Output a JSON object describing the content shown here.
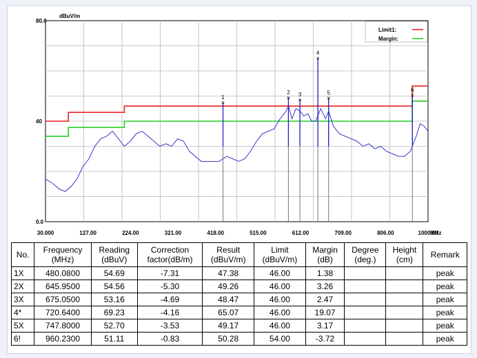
{
  "chart_data": {
    "type": "line",
    "ylabel": "dBuV/m",
    "x_unit": "MHz",
    "xlim": [
      30,
      1000
    ],
    "ylim": [
      0,
      80
    ],
    "x_ticks": [
      "30.000",
      "127.00",
      "224.00",
      "321.00",
      "418.00",
      "515.00",
      "612.00",
      "709.00",
      "806.00",
      "1000.00"
    ],
    "y_ticks": [
      {
        "value": 0,
        "label": "0.0"
      },
      {
        "value": 40,
        "label": "40"
      },
      {
        "value": 80,
        "label": "80.0"
      }
    ],
    "grid": true,
    "legend_position": "top-right",
    "series": [
      {
        "name": "Limit1:",
        "color": "#e82020",
        "x": [
          30,
          88,
          88,
          230,
          230,
          960,
          960,
          1000
        ],
        "y": [
          40,
          40,
          43.5,
          43.5,
          46,
          46,
          54,
          54
        ]
      },
      {
        "name": "Margin:",
        "color": "#20d020",
        "x": [
          30,
          88,
          88,
          230,
          230,
          960,
          960,
          1000
        ],
        "y": [
          34,
          34,
          37.5,
          37.5,
          40,
          40,
          48,
          48
        ]
      },
      {
        "name": "",
        "color": "#2020c8",
        "x": [
          30,
          50,
          65,
          80,
          95,
          110,
          125,
          140,
          155,
          170,
          185,
          200,
          215,
          230,
          245,
          260,
          275,
          290,
          305,
          320,
          335,
          350,
          365,
          380,
          395,
          410,
          425,
          440,
          455,
          470,
          480,
          490,
          505,
          520,
          535,
          550,
          565,
          580,
          595,
          610,
          625,
          640,
          646,
          655,
          665,
          675,
          685,
          695,
          705,
          715,
          720,
          728,
          740,
          748,
          760,
          775,
          790,
          805,
          820,
          835,
          850,
          865,
          880,
          895,
          910,
          925,
          940,
          955,
          960,
          970,
          980,
          990,
          1000
        ],
        "y": [
          17,
          15,
          13,
          12,
          14,
          17,
          22,
          25,
          30,
          33,
          34,
          36,
          33,
          30,
          32,
          35,
          36,
          34,
          32,
          30,
          31,
          30,
          33,
          32,
          28,
          26,
          24,
          24,
          24,
          24,
          25,
          26,
          25,
          24,
          25,
          28,
          32,
          35,
          36,
          37,
          41,
          44,
          46,
          41,
          45,
          44,
          42,
          43,
          40,
          40,
          42,
          45,
          41,
          44,
          38,
          35,
          34,
          33,
          32,
          30,
          31,
          29,
          30,
          28,
          27,
          26,
          26,
          28,
          30,
          34,
          39,
          38,
          36
        ]
      }
    ],
    "markers": [
      {
        "label": "1",
        "x": 480.08,
        "y": 47.38
      },
      {
        "label": "2",
        "x": 645.95,
        "y": 49.26
      },
      {
        "label": "3",
        "x": 675.05,
        "y": 48.47
      },
      {
        "label": "4",
        "x": 720.64,
        "y": 65.07
      },
      {
        "label": "5",
        "x": 747.8,
        "y": 49.17
      },
      {
        "label": "6",
        "x": 960.23,
        "y": 50.28
      }
    ]
  },
  "table": {
    "headers": [
      {
        "l1": "No.",
        "l2": ""
      },
      {
        "l1": "Frequency",
        "l2": "(MHz)"
      },
      {
        "l1": "Reading",
        "l2": "(dBuV)"
      },
      {
        "l1": "Correction",
        "l2": "factor(dB/m)"
      },
      {
        "l1": "Result",
        "l2": "(dBuV/m)"
      },
      {
        "l1": "Limit",
        "l2": "(dBuV/m)"
      },
      {
        "l1": "Margin",
        "l2": "(dB)"
      },
      {
        "l1": "Degree",
        "l2": "(deg.)"
      },
      {
        "l1": "Height",
        "l2": "(cm)"
      },
      {
        "l1": "Remark",
        "l2": ""
      }
    ],
    "rows": [
      [
        "1X",
        "480.0800",
        "54.69",
        "-7.31",
        "47.38",
        "46.00",
        "1.38",
        "",
        "",
        "peak"
      ],
      [
        "2X",
        "645.9500",
        "54.56",
        "-5.30",
        "49.26",
        "46.00",
        "3.26",
        "",
        "",
        "peak"
      ],
      [
        "3X",
        "675.0500",
        "53.16",
        "-4.69",
        "48.47",
        "46.00",
        "2.47",
        "",
        "",
        "peak"
      ],
      [
        "4*",
        "720.6400",
        "69.23",
        "-4.16",
        "65.07",
        "46.00",
        "19.07",
        "",
        "",
        "peak"
      ],
      [
        "5X",
        "747.8000",
        "52.70",
        "-3.53",
        "49.17",
        "46.00",
        "3.17",
        "",
        "",
        "peak"
      ],
      [
        "6!",
        "960.2300",
        "51.11",
        "-0.83",
        "50.28",
        "54.00",
        "-3.72",
        "",
        "",
        "peak"
      ]
    ]
  }
}
